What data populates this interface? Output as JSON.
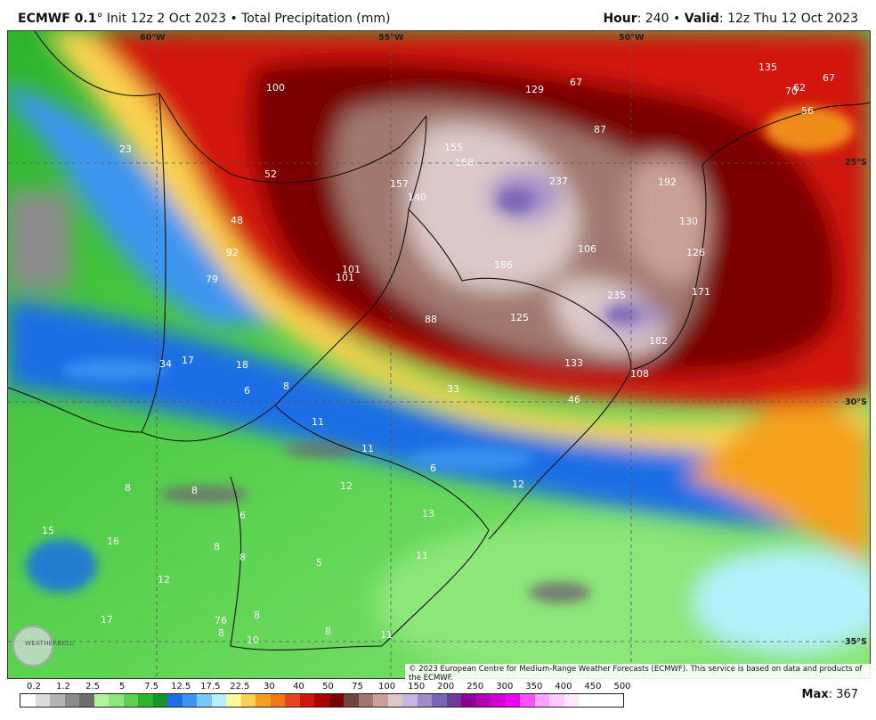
{
  "header": {
    "model": "ECMWF 0.1",
    "init": "Init 12z 2 Oct 2023",
    "product": "Total Precipitation (mm)",
    "hour_label": "Hour",
    "hour_value": "240",
    "valid_label": "Valid",
    "valid_value": "12z Thu 12 Oct 2023"
  },
  "lon_labels": [
    "60°W",
    "55°W",
    "50°W"
  ],
  "lat_labels": [
    "25°S",
    "30°S",
    "35°S"
  ],
  "value_labels": [
    "100",
    "129",
    "67",
    "135",
    "70",
    "62",
    "67",
    "56",
    "23",
    "155",
    "158",
    "87",
    "52",
    "157",
    "140",
    "237",
    "192",
    "48",
    "130",
    "106",
    "92",
    "186",
    "126",
    "79",
    "101",
    "101",
    "235",
    "171",
    "88",
    "125",
    "182",
    "34",
    "17",
    "18",
    "133",
    "108",
    "6",
    "8",
    "33",
    "46",
    "11",
    "11",
    "6",
    "8",
    "8",
    "12",
    "12",
    "6",
    "13",
    "15",
    "16",
    "8",
    "8",
    "5",
    "11",
    "12",
    "76",
    "8",
    "17",
    "8",
    "8",
    "10",
    "11"
  ],
  "colorbar": {
    "ticks": [
      "0.2",
      "1.2",
      "2.5",
      "5",
      "7.5",
      "12.5",
      "17.5",
      "22.5",
      "30",
      "40",
      "50",
      "75",
      "100",
      "150",
      "200",
      "250",
      "300",
      "350",
      "400",
      "450",
      "500"
    ],
    "colors": [
      "#ffffff",
      "#dcdcdc",
      "#b4b4b4",
      "#8c8c8c",
      "#6e6e6e",
      "#b4f0a0",
      "#8ce678",
      "#5ad250",
      "#2db42d",
      "#14962d",
      "#1e6ee6",
      "#3c96f0",
      "#78c8fa",
      "#b4f0fa",
      "#fafa9b",
      "#fad250",
      "#f5a01e",
      "#f07814",
      "#e6461e",
      "#d2140a",
      "#aa0000",
      "#7a0000",
      "#6e4640",
      "#a0786e",
      "#c8a096",
      "#dcc8c8",
      "#c8b4dc",
      "#a08cc8",
      "#7864b4",
      "#6e3c96",
      "#8c0096",
      "#b400b4",
      "#d200d2",
      "#f000f0",
      "#fa50fa",
      "#ffa0ff",
      "#ffc8ff",
      "#ffe6ff",
      "#ffffff",
      "#ffffff",
      "#ffffff"
    ],
    "max_label": "Max",
    "max_value": "367"
  },
  "credit": "© 2023 European Centre for Medium-Range Weather Forecasts (ECMWF). This service is based on data and products of the ECMWF.",
  "logo_text": "WEATHERBELL"
}
